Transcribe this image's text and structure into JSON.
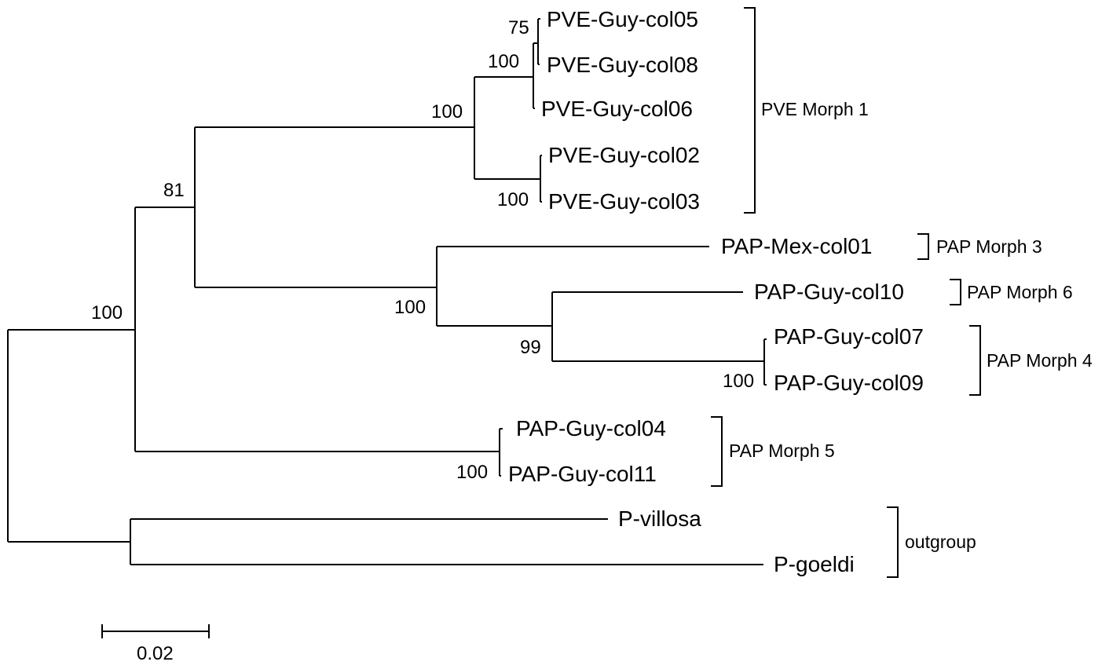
{
  "taxa": {
    "pve_guy_col05": "PVE-Guy-col05",
    "pve_guy_col08": "PVE-Guy-col08",
    "pve_guy_col06": "PVE-Guy-col06",
    "pve_guy_col02": "PVE-Guy-col02",
    "pve_guy_col03": "PVE-Guy-col03",
    "pap_mex_col01": "PAP-Mex-col01",
    "pap_guy_col10": "PAP-Guy-col10",
    "pap_guy_col07": "PAP-Guy-col07",
    "pap_guy_col09": "PAP-Guy-col09",
    "pap_guy_col04": "PAP-Guy-col04",
    "pap_guy_col11": "PAP-Guy-col11",
    "p_villosa": "P-villosa",
    "p_goeldi": "P-goeldi"
  },
  "bootstrap": {
    "b05_08": "75",
    "b_05_08_06": "100",
    "b_pve": "100",
    "b_02_03": "100",
    "b_pve_pap": "81",
    "b_pap": "100",
    "b_10_07_09": "99",
    "b_07_09": "100",
    "b_04_11": "100",
    "b_ingroup": "100"
  },
  "groups": {
    "pve_morph_1": "PVE Morph 1",
    "pap_morph_3": "PAP Morph 3",
    "pap_morph_6": "PAP Morph 6",
    "pap_morph_4": "PAP Morph 4",
    "pap_morph_5": "PAP Morph 5",
    "outgroup": "outgroup"
  },
  "scale_bar": {
    "label": "0.02"
  }
}
